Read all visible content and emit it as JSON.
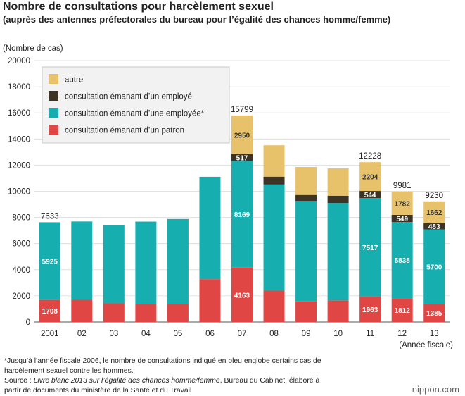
{
  "header": {
    "title": "Nombre de consultations pour harcèlement sexuel",
    "subtitle": "(auprès des antennes préfectorales du bureau pour l’égalité des chances homme/femme)"
  },
  "notes": {
    "line1": "*Jusqu’à l’année fiscale 2006, le nombre de consultations indiqué en bleu englobe certains cas de",
    "line2": "harcèlement sexuel contre les hommes.",
    "line3_prefix": "Source : ",
    "line3_title": "Livre blanc 2013 sur l’égalité des chances homme/femme",
    "line3_suffix": ", Bureau du Cabinet, élaboré à",
    "line4": "partir de documents du ministère de la Santé et du Travail"
  },
  "brand": "nippon.com",
  "chart_data": {
    "type": "bar",
    "stacked": true,
    "ylabel": "(Nombre de cas)",
    "xlabel": "(Année fiscale)",
    "ylim": [
      0,
      20000
    ],
    "yticks": [
      0,
      2000,
      4000,
      6000,
      8000,
      10000,
      12000,
      14000,
      16000,
      18000,
      20000
    ],
    "grid": true,
    "legend_position": "top-left",
    "categories": [
      "2001",
      "02",
      "03",
      "04",
      "05",
      "06",
      "07",
      "08",
      "09",
      "10",
      "11",
      "12",
      "13"
    ],
    "series": [
      {
        "name": "consultation émanant d’un patron",
        "color": "#e04643",
        "values": [
          1708,
          1700,
          1430,
          1380,
          1380,
          3280,
          4163,
          2400,
          1580,
          1650,
          1963,
          1812,
          1385
        ],
        "labels": [
          "1708",
          null,
          null,
          null,
          null,
          null,
          "4163",
          null,
          null,
          null,
          "1963",
          "1812",
          "1385"
        ]
      },
      {
        "name": "consultation émanant d’une employée*",
        "color": "#17aeb0",
        "values": [
          5925,
          5990,
          5970,
          6300,
          6500,
          7830,
          8169,
          8120,
          7680,
          7450,
          7517,
          5838,
          5700
        ],
        "labels": [
          "5925",
          null,
          null,
          null,
          null,
          null,
          "8169",
          null,
          null,
          null,
          "7517",
          "5838",
          "5700"
        ]
      },
      {
        "name": "consultation émanant d’un employé",
        "color": "#3e3426",
        "values": [
          0,
          0,
          0,
          0,
          0,
          0,
          517,
          600,
          460,
          560,
          544,
          549,
          483
        ],
        "labels": [
          null,
          null,
          null,
          null,
          null,
          null,
          "517",
          null,
          null,
          null,
          "544",
          "549",
          "483"
        ]
      },
      {
        "name": "autre",
        "color": "#e8c26a",
        "values": [
          0,
          0,
          0,
          0,
          0,
          0,
          2950,
          2400,
          2140,
          2090,
          2204,
          1782,
          1662
        ],
        "labels": [
          null,
          null,
          null,
          null,
          null,
          null,
          "2950",
          null,
          null,
          null,
          "2204",
          "1782",
          "1662"
        ]
      }
    ],
    "totals": [
      "7633",
      null,
      null,
      null,
      null,
      null,
      "15799",
      null,
      null,
      null,
      "12228",
      "9981",
      "9230"
    ],
    "legend_order": [
      "autre",
      "consultation émanant d’un employé",
      "consultation émanant d’une employée*",
      "consultation émanant d’un patron"
    ]
  }
}
